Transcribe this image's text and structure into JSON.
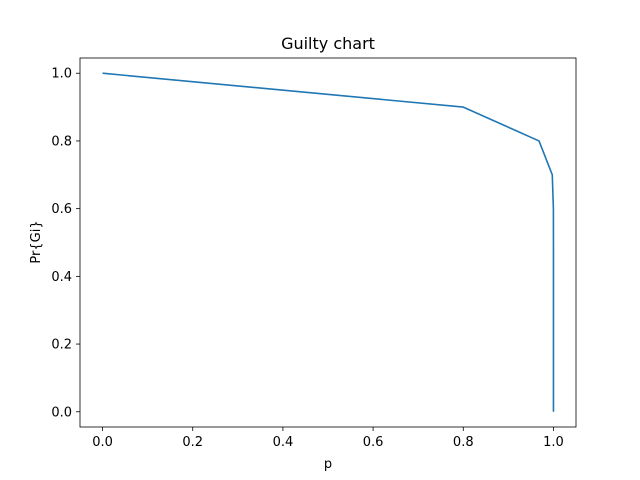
{
  "chart_data": {
    "type": "line",
    "title": "Guilty chart",
    "xlabel": "p",
    "ylabel": "Pr{Gi}",
    "xlim": [
      -0.05,
      1.05
    ],
    "ylim": [
      -0.045,
      1.045
    ],
    "x_ticks": [
      "0.0",
      "0.2",
      "0.4",
      "0.6",
      "0.8",
      "1.0"
    ],
    "y_ticks": [
      "0.0",
      "0.2",
      "0.4",
      "0.6",
      "0.8",
      "1.0"
    ],
    "grid": false,
    "colors": {
      "series": "#1f77b4",
      "axes": "#000000",
      "background": "#ffffff"
    },
    "series": [
      {
        "x": [
          0.0,
          0.8,
          0.968,
          0.9974,
          0.99986,
          0.999995,
          0.99999985,
          1.0,
          1.0,
          1.0,
          1.0
        ],
        "y": [
          1.0,
          0.9,
          0.8,
          0.7,
          0.6,
          0.5,
          0.4,
          0.3,
          0.2,
          0.1,
          0.0
        ]
      }
    ]
  }
}
